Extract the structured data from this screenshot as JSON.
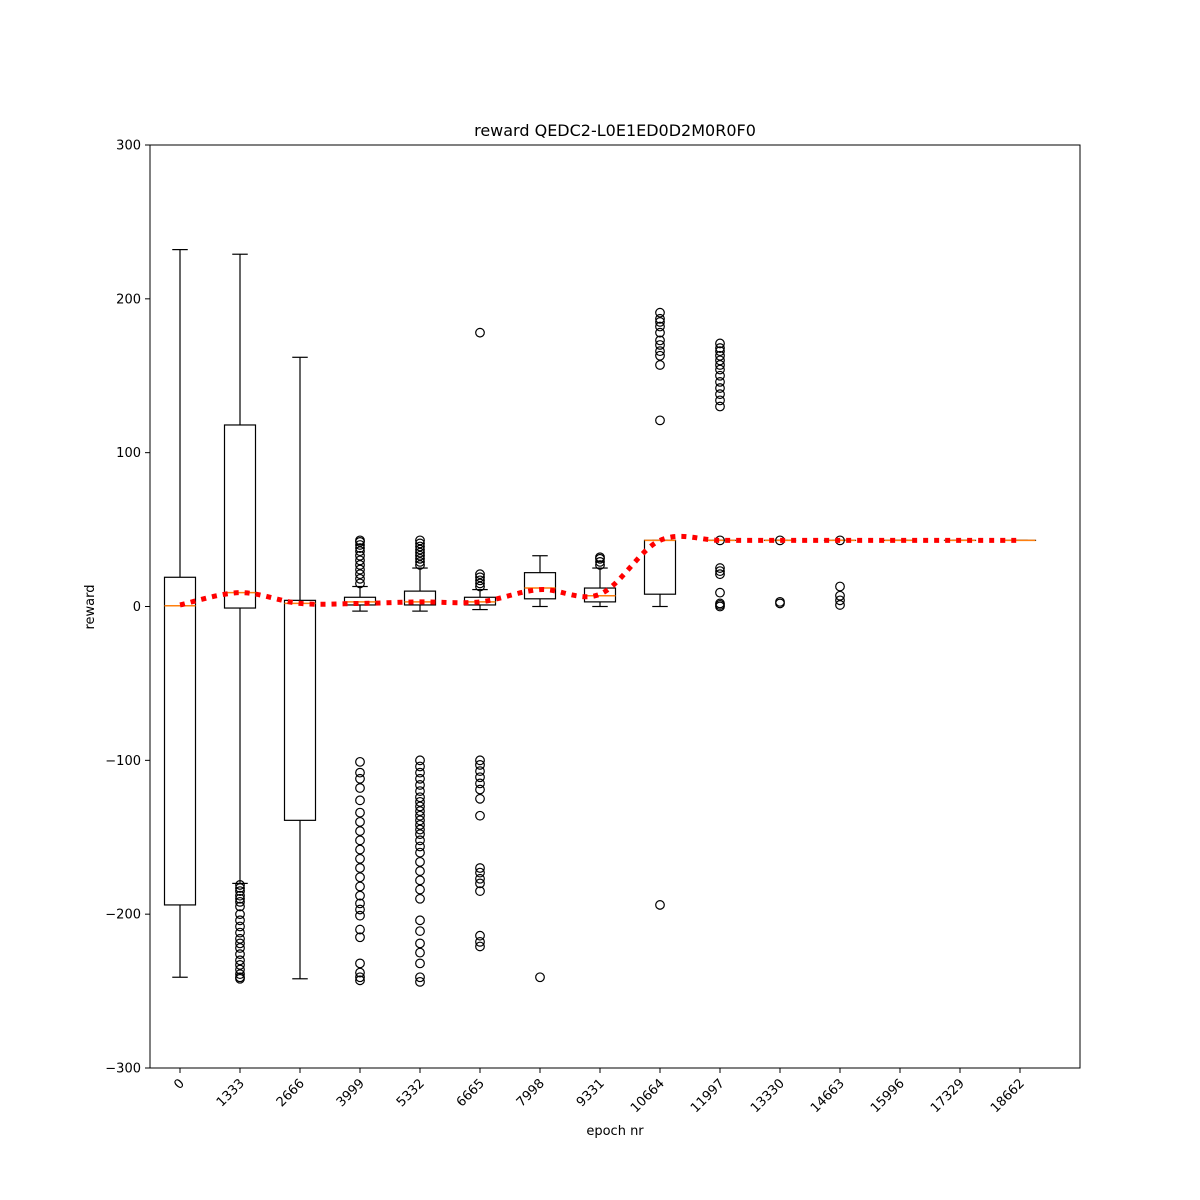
{
  "chart_data": {
    "type": "box",
    "title": "reward QEDC2-L0E1ED0D2M0R0F0",
    "xlabel": "epoch nr",
    "ylabel": "reward",
    "ylim": [
      -300,
      300
    ],
    "yticks": [
      -300,
      -200,
      -100,
      0,
      100,
      200,
      300
    ],
    "ytick_labels": [
      "−300",
      "−200",
      "−100",
      "0",
      "100",
      "200",
      "300"
    ],
    "grid": false,
    "colors": {
      "box": "#000000",
      "median": "#ff7f0e",
      "mean_line": "#ff0000"
    },
    "categories": [
      "0",
      "1333",
      "2666",
      "3999",
      "5332",
      "6665",
      "7998",
      "9331",
      "10664",
      "11997",
      "13330",
      "14663",
      "15996",
      "17329",
      "18662"
    ],
    "boxes": [
      {
        "whislo": -241,
        "q1": -194,
        "med": 0.5,
        "q3": 19,
        "whishi": 232,
        "fliers": []
      },
      {
        "whislo": -180,
        "q1": -1,
        "med": 9,
        "q3": 118,
        "whishi": 229,
        "fliers": [
          -181,
          -183,
          -185,
          -188,
          -190,
          -192,
          -195,
          -200,
          -204,
          -208,
          -212,
          -216,
          -219,
          -222,
          -226,
          -230,
          -233,
          -236,
          -239,
          -241,
          -242
        ]
      },
      {
        "whislo": -242,
        "q1": -139,
        "med": 2,
        "q3": 4,
        "whishi": 162,
        "fliers": []
      },
      {
        "whislo": -3,
        "q1": 1,
        "med": 3,
        "q3": 6,
        "whishi": 13,
        "fliers": [
          15,
          18,
          21,
          24,
          27,
          30,
          33,
          36,
          38,
          40,
          42,
          43,
          -101,
          -108,
          -112,
          -118,
          -126,
          -134,
          -140,
          -146,
          -152,
          -158,
          -164,
          -170,
          -176,
          -182,
          -188,
          -193,
          -197,
          -201,
          -210,
          -215,
          -232,
          -238,
          -241,
          -243
        ]
      },
      {
        "whislo": -3,
        "q1": 1,
        "med": 3,
        "q3": 10,
        "whishi": 25,
        "fliers": [
          27,
          29,
          31,
          33,
          35,
          37,
          39,
          41,
          43,
          -100,
          -104,
          -108,
          -112,
          -116,
          -120,
          -124,
          -127,
          -130,
          -133,
          -136,
          -139,
          -142,
          -145,
          -148,
          -152,
          -156,
          -160,
          -166,
          -172,
          -178,
          -184,
          -190,
          -204,
          -211,
          -219,
          -225,
          -232,
          -241,
          -244
        ]
      },
      {
        "whislo": -2,
        "q1": 1,
        "med": 3,
        "q3": 6,
        "whishi": 11,
        "fliers": [
          13,
          15,
          17,
          19,
          21,
          -100,
          -103,
          -107,
          -111,
          -115,
          -119,
          -125,
          -136,
          -170,
          -173,
          -177,
          -180,
          -185,
          -214,
          -218,
          -221,
          178
        ]
      },
      {
        "whislo": 0,
        "q1": 5,
        "med": 12,
        "q3": 22,
        "whishi": 33,
        "fliers": [
          -241
        ]
      },
      {
        "whislo": 0,
        "q1": 3,
        "med": 7,
        "q3": 12,
        "whishi": 25,
        "fliers": [
          27,
          29,
          31,
          32
        ]
      },
      {
        "whislo": 0,
        "q1": 8,
        "med": 43,
        "q3": 43,
        "whishi": 43,
        "fliers": [
          121,
          157,
          163,
          166,
          170,
          173,
          178,
          182,
          185,
          187,
          191,
          -194
        ]
      },
      {
        "whislo": 43,
        "q1": 43,
        "med": 43,
        "q3": 43,
        "whishi": 43,
        "fliers": [
          0,
          1,
          2,
          9,
          21,
          23,
          25,
          43,
          130,
          134,
          138,
          142,
          146,
          150,
          154,
          157,
          160,
          163,
          166,
          168,
          171
        ]
      },
      {
        "whislo": 43,
        "q1": 43,
        "med": 43,
        "q3": 43,
        "whishi": 43,
        "fliers": [
          2,
          3,
          43
        ]
      },
      {
        "whislo": 43,
        "q1": 43,
        "med": 43,
        "q3": 43,
        "whishi": 43,
        "fliers": [
          1,
          4,
          7,
          13,
          43
        ]
      },
      {
        "whislo": 43,
        "q1": 43,
        "med": 43,
        "q3": 43,
        "whishi": 43,
        "fliers": []
      },
      {
        "whislo": 43,
        "q1": 43,
        "med": 43,
        "q3": 43,
        "whishi": 43,
        "fliers": []
      },
      {
        "whislo": 43,
        "q1": 43,
        "med": 43,
        "q3": 43,
        "whishi": 43,
        "fliers": []
      }
    ],
    "mean_line": [
      1,
      9,
      2,
      2,
      3,
      3,
      11,
      8,
      43,
      43,
      43,
      43,
      43,
      43,
      43
    ]
  }
}
